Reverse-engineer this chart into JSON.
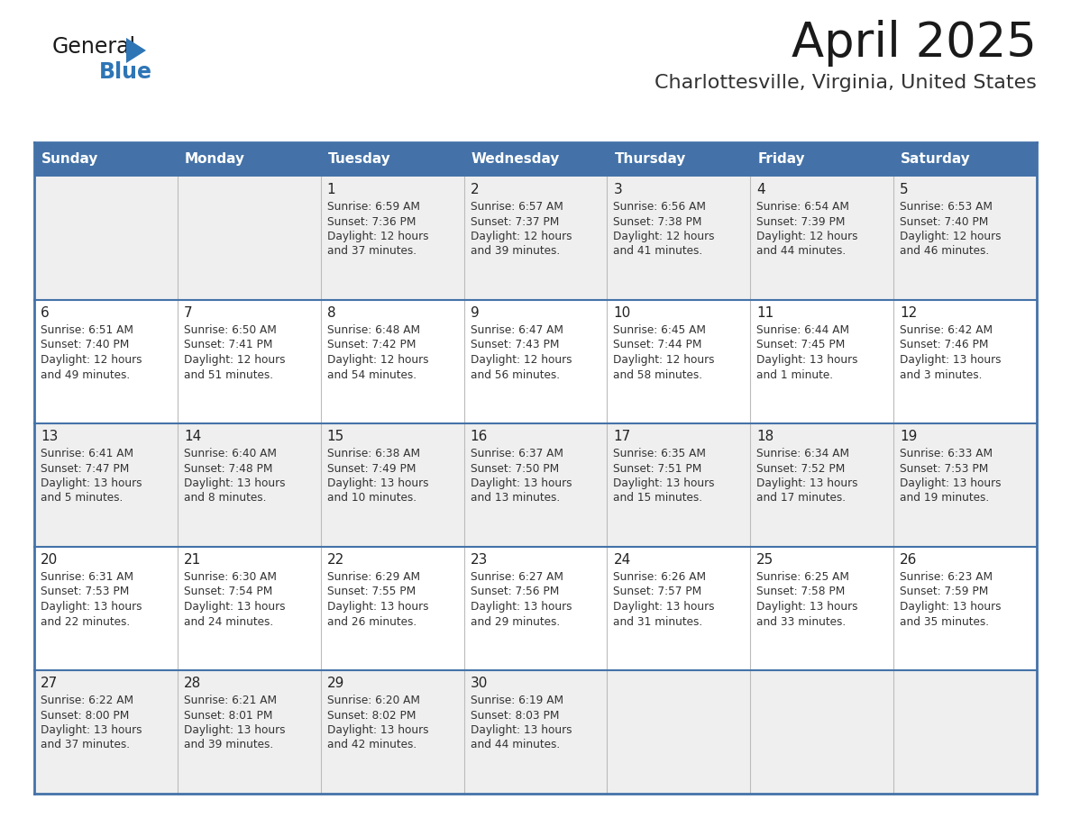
{
  "title": "April 2025",
  "subtitle": "Charlottesville, Virginia, United States",
  "header_color": "#4472A8",
  "header_text_color": "#FFFFFF",
  "row_color_light": "#EFEFEF",
  "row_color_white": "#FFFFFF",
  "border_color": "#4472A8",
  "cell_line_color": "#BBBBBB",
  "day_headers": [
    "Sunday",
    "Monday",
    "Tuesday",
    "Wednesday",
    "Thursday",
    "Friday",
    "Saturday"
  ],
  "days": [
    {
      "date": 1,
      "col": 2,
      "row": 0,
      "sunrise": "6:59 AM",
      "sunset": "7:36 PM",
      "daylight_hours": 12,
      "daylight_minutes": 37
    },
    {
      "date": 2,
      "col": 3,
      "row": 0,
      "sunrise": "6:57 AM",
      "sunset": "7:37 PM",
      "daylight_hours": 12,
      "daylight_minutes": 39
    },
    {
      "date": 3,
      "col": 4,
      "row": 0,
      "sunrise": "6:56 AM",
      "sunset": "7:38 PM",
      "daylight_hours": 12,
      "daylight_minutes": 41
    },
    {
      "date": 4,
      "col": 5,
      "row": 0,
      "sunrise": "6:54 AM",
      "sunset": "7:39 PM",
      "daylight_hours": 12,
      "daylight_minutes": 44
    },
    {
      "date": 5,
      "col": 6,
      "row": 0,
      "sunrise": "6:53 AM",
      "sunset": "7:40 PM",
      "daylight_hours": 12,
      "daylight_minutes": 46
    },
    {
      "date": 6,
      "col": 0,
      "row": 1,
      "sunrise": "6:51 AM",
      "sunset": "7:40 PM",
      "daylight_hours": 12,
      "daylight_minutes": 49
    },
    {
      "date": 7,
      "col": 1,
      "row": 1,
      "sunrise": "6:50 AM",
      "sunset": "7:41 PM",
      "daylight_hours": 12,
      "daylight_minutes": 51
    },
    {
      "date": 8,
      "col": 2,
      "row": 1,
      "sunrise": "6:48 AM",
      "sunset": "7:42 PM",
      "daylight_hours": 12,
      "daylight_minutes": 54
    },
    {
      "date": 9,
      "col": 3,
      "row": 1,
      "sunrise": "6:47 AM",
      "sunset": "7:43 PM",
      "daylight_hours": 12,
      "daylight_minutes": 56
    },
    {
      "date": 10,
      "col": 4,
      "row": 1,
      "sunrise": "6:45 AM",
      "sunset": "7:44 PM",
      "daylight_hours": 12,
      "daylight_minutes": 58
    },
    {
      "date": 11,
      "col": 5,
      "row": 1,
      "sunrise": "6:44 AM",
      "sunset": "7:45 PM",
      "daylight_hours": 13,
      "daylight_minutes": 1
    },
    {
      "date": 12,
      "col": 6,
      "row": 1,
      "sunrise": "6:42 AM",
      "sunset": "7:46 PM",
      "daylight_hours": 13,
      "daylight_minutes": 3
    },
    {
      "date": 13,
      "col": 0,
      "row": 2,
      "sunrise": "6:41 AM",
      "sunset": "7:47 PM",
      "daylight_hours": 13,
      "daylight_minutes": 5
    },
    {
      "date": 14,
      "col": 1,
      "row": 2,
      "sunrise": "6:40 AM",
      "sunset": "7:48 PM",
      "daylight_hours": 13,
      "daylight_minutes": 8
    },
    {
      "date": 15,
      "col": 2,
      "row": 2,
      "sunrise": "6:38 AM",
      "sunset": "7:49 PM",
      "daylight_hours": 13,
      "daylight_minutes": 10
    },
    {
      "date": 16,
      "col": 3,
      "row": 2,
      "sunrise": "6:37 AM",
      "sunset": "7:50 PM",
      "daylight_hours": 13,
      "daylight_minutes": 13
    },
    {
      "date": 17,
      "col": 4,
      "row": 2,
      "sunrise": "6:35 AM",
      "sunset": "7:51 PM",
      "daylight_hours": 13,
      "daylight_minutes": 15
    },
    {
      "date": 18,
      "col": 5,
      "row": 2,
      "sunrise": "6:34 AM",
      "sunset": "7:52 PM",
      "daylight_hours": 13,
      "daylight_minutes": 17
    },
    {
      "date": 19,
      "col": 6,
      "row": 2,
      "sunrise": "6:33 AM",
      "sunset": "7:53 PM",
      "daylight_hours": 13,
      "daylight_minutes": 19
    },
    {
      "date": 20,
      "col": 0,
      "row": 3,
      "sunrise": "6:31 AM",
      "sunset": "7:53 PM",
      "daylight_hours": 13,
      "daylight_minutes": 22
    },
    {
      "date": 21,
      "col": 1,
      "row": 3,
      "sunrise": "6:30 AM",
      "sunset": "7:54 PM",
      "daylight_hours": 13,
      "daylight_minutes": 24
    },
    {
      "date": 22,
      "col": 2,
      "row": 3,
      "sunrise": "6:29 AM",
      "sunset": "7:55 PM",
      "daylight_hours": 13,
      "daylight_minutes": 26
    },
    {
      "date": 23,
      "col": 3,
      "row": 3,
      "sunrise": "6:27 AM",
      "sunset": "7:56 PM",
      "daylight_hours": 13,
      "daylight_minutes": 29
    },
    {
      "date": 24,
      "col": 4,
      "row": 3,
      "sunrise": "6:26 AM",
      "sunset": "7:57 PM",
      "daylight_hours": 13,
      "daylight_minutes": 31
    },
    {
      "date": 25,
      "col": 5,
      "row": 3,
      "sunrise": "6:25 AM",
      "sunset": "7:58 PM",
      "daylight_hours": 13,
      "daylight_minutes": 33
    },
    {
      "date": 26,
      "col": 6,
      "row": 3,
      "sunrise": "6:23 AM",
      "sunset": "7:59 PM",
      "daylight_hours": 13,
      "daylight_minutes": 35
    },
    {
      "date": 27,
      "col": 0,
      "row": 4,
      "sunrise": "6:22 AM",
      "sunset": "8:00 PM",
      "daylight_hours": 13,
      "daylight_minutes": 37
    },
    {
      "date": 28,
      "col": 1,
      "row": 4,
      "sunrise": "6:21 AM",
      "sunset": "8:01 PM",
      "daylight_hours": 13,
      "daylight_minutes": 39
    },
    {
      "date": 29,
      "col": 2,
      "row": 4,
      "sunrise": "6:20 AM",
      "sunset": "8:02 PM",
      "daylight_hours": 13,
      "daylight_minutes": 42
    },
    {
      "date": 30,
      "col": 3,
      "row": 4,
      "sunrise": "6:19 AM",
      "sunset": "8:03 PM",
      "daylight_hours": 13,
      "daylight_minutes": 44
    }
  ],
  "logo_triangle_color": "#2E75B6",
  "fig_width": 11.88,
  "fig_height": 9.18,
  "dpi": 100
}
